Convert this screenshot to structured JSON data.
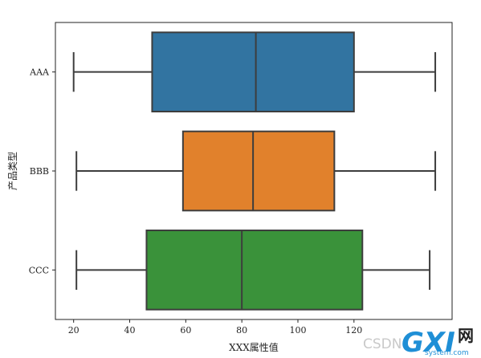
{
  "chart_data": {
    "type": "boxplot",
    "orientation": "horizontal",
    "title": "",
    "xlabel": "XXX属性值",
    "ylabel": "产品类型",
    "xlim": [
      13.5,
      155
    ],
    "xticks": [
      20,
      40,
      60,
      80,
      100,
      120
    ],
    "grid": false,
    "categories": [
      "AAA",
      "BBB",
      "CCC"
    ],
    "boxes": [
      {
        "category": "AAA",
        "whisker_low": 20,
        "q1": 48,
        "median": 85,
        "q3": 120,
        "whisker_high": 149,
        "color": "#3274a1"
      },
      {
        "category": "BBB",
        "whisker_low": 21,
        "q1": 59,
        "median": 84,
        "q3": 113,
        "whisker_high": 149,
        "color": "#e1812c"
      },
      {
        "category": "CCC",
        "whisker_low": 21,
        "q1": 46,
        "median": 80,
        "q3": 123,
        "whisker_high": 147,
        "color": "#3a923a"
      }
    ]
  },
  "watermark": {
    "csdn": "CSDN",
    "logo": "GXI",
    "net": "网",
    "site": "system.com"
  }
}
